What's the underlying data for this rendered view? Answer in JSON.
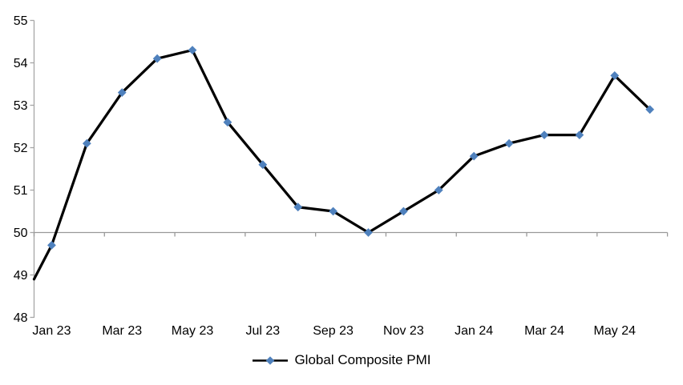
{
  "chart_data": {
    "type": "line",
    "title": "",
    "categories": [
      "Jan 23",
      "Feb 23",
      "Mar 23",
      "Apr 23",
      "May 23",
      "Jun 23",
      "Jul 23",
      "Aug 23",
      "Sep 23",
      "Oct 23",
      "Nov 23",
      "Dec 23",
      "Jan 24",
      "Feb 24",
      "Mar 24",
      "Apr 24",
      "May 24",
      "Jun 24"
    ],
    "series": [
      {
        "name": "Global Composite PMI",
        "values": [
          49.7,
          52.1,
          53.3,
          54.1,
          54.3,
          52.6,
          51.6,
          50.6,
          50.5,
          50.0,
          50.5,
          51.0,
          51.8,
          52.1,
          52.3,
          52.3,
          53.7,
          52.9
        ],
        "edge_start_value": 48.9
      }
    ],
    "x_axis": {
      "visible_tick_labels": [
        "Jan 23",
        "Mar 23",
        "May 23",
        "Jul 23",
        "Sep 23",
        "Nov 23",
        "Jan 24",
        "Mar 24",
        "May 24"
      ],
      "label_every_n_categories": 2,
      "axis_line_at_value": 50
    },
    "y_axis": {
      "min": 48,
      "max": 55,
      "tick_interval": 1,
      "tick_labels": [
        "48",
        "49",
        "50",
        "51",
        "52",
        "53",
        "54",
        "55"
      ]
    },
    "legend": {
      "label": "Global Composite PMI",
      "position": "bottom-center"
    },
    "grid": "off",
    "marker_shape": "diamond",
    "colors": {
      "line": "#000000",
      "marker": "#4F81BD",
      "axis": "#A6A6A6",
      "baseline": "#999999",
      "text": "#000000",
      "background": "#FFFFFF"
    }
  }
}
